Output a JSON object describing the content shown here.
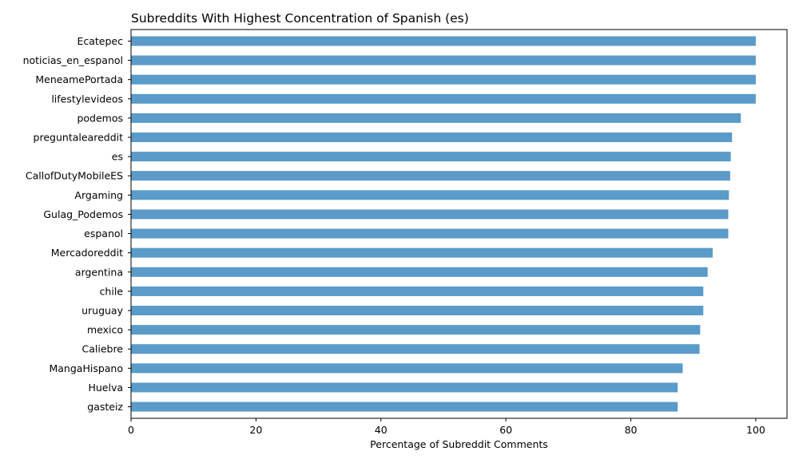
{
  "chart_data": {
    "type": "bar",
    "orientation": "horizontal",
    "title": "Subreddits With Highest Concentration of Spanish (es)",
    "xlabel": "Percentage of Subreddit Comments",
    "ylabel": "",
    "xlim": [
      0,
      105
    ],
    "xticks": [
      0,
      20,
      40,
      60,
      80,
      100
    ],
    "grid": false,
    "legend": "none",
    "bar_color": "#5a9bc9",
    "categories": [
      "Ecatepec",
      "noticias_en_espanol",
      "MeneamePortada",
      "lifestylevideos",
      "podemos",
      "preguntaleareddit",
      "es",
      "CallofDutyMobileES",
      "Argaming",
      "Gulag_Podemos",
      "espanol",
      "Mercadoreddit",
      "argentina",
      "chile",
      "uruguay",
      "mexico",
      "Caliebre",
      "MangaHispano",
      "Huelva",
      "gasteiz"
    ],
    "values": [
      100,
      100,
      100,
      100,
      97.6,
      96.2,
      96.0,
      95.9,
      95.7,
      95.6,
      95.6,
      93.1,
      92.3,
      91.6,
      91.6,
      91.1,
      91.0,
      88.3,
      87.5,
      87.5
    ]
  }
}
